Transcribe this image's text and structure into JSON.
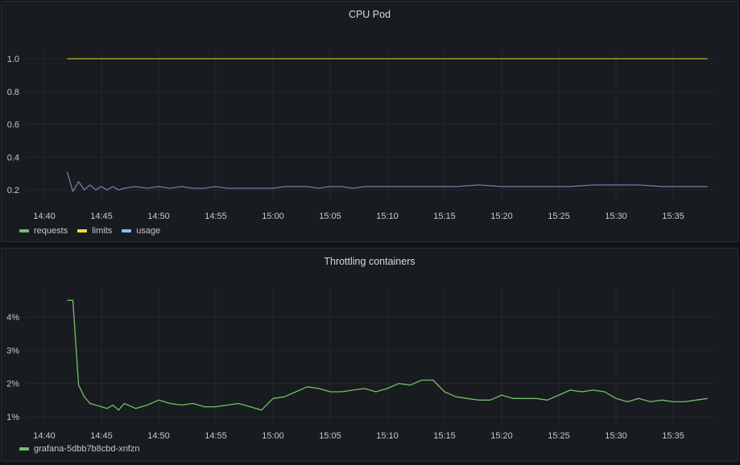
{
  "chart_data": [
    {
      "type": "line",
      "title": "CPU Pod",
      "x_ticks": [
        "14:40",
        "14:45",
        "14:50",
        "14:55",
        "15:00",
        "15:05",
        "15:10",
        "15:15",
        "15:20",
        "15:25",
        "15:30",
        "15:35"
      ],
      "y_ticks": [
        "0.2",
        "0.4",
        "0.6",
        "0.8",
        "1.0"
      ],
      "ylim": [
        0.2,
        1.0
      ],
      "grid": true,
      "legend_position": "bottom-left",
      "series": [
        {
          "name": "requests",
          "color": "#73bf69",
          "x": [],
          "y": []
        },
        {
          "name": "limits",
          "color": "#fade2a",
          "color_drawn": "#b7b22c",
          "x": [
            "14:42",
            "15:38"
          ],
          "y": [
            1.0,
            1.0
          ]
        },
        {
          "name": "usage",
          "color": "#8ab8ff",
          "color_drawn": "#6c7fa9",
          "x": [
            "14:42",
            "14:42:30",
            "14:43",
            "14:43:30",
            "14:44",
            "14:44:30",
            "14:45",
            "14:45:30",
            "14:46",
            "14:46:30",
            "14:47",
            "14:48",
            "14:49",
            "14:50",
            "14:51",
            "14:52",
            "14:53",
            "14:54",
            "14:55",
            "14:56",
            "14:58",
            "15:00",
            "15:01",
            "15:02",
            "15:03",
            "15:04",
            "15:05",
            "15:06",
            "15:07",
            "15:08",
            "15:09",
            "15:10",
            "15:12",
            "15:14",
            "15:16",
            "15:18",
            "15:20",
            "15:22",
            "15:24",
            "15:26",
            "15:28",
            "15:30",
            "15:32",
            "15:34",
            "15:36",
            "15:38"
          ],
          "y": [
            0.31,
            0.19,
            0.25,
            0.2,
            0.23,
            0.2,
            0.22,
            0.2,
            0.22,
            0.2,
            0.21,
            0.22,
            0.21,
            0.22,
            0.21,
            0.22,
            0.21,
            0.21,
            0.22,
            0.21,
            0.21,
            0.21,
            0.22,
            0.22,
            0.22,
            0.21,
            0.22,
            0.22,
            0.21,
            0.22,
            0.22,
            0.22,
            0.22,
            0.22,
            0.22,
            0.23,
            0.22,
            0.22,
            0.22,
            0.22,
            0.23,
            0.23,
            0.23,
            0.22,
            0.22,
            0.22
          ]
        }
      ]
    },
    {
      "type": "line",
      "title": "Throttling containers",
      "x_ticks": [
        "14:40",
        "14:45",
        "14:50",
        "14:55",
        "15:00",
        "15:05",
        "15:10",
        "15:15",
        "15:20",
        "15:25",
        "15:30",
        "15:35"
      ],
      "y_ticks": [
        "1%",
        "2%",
        "3%",
        "4%"
      ],
      "ylim": [
        1,
        4.5
      ],
      "grid": true,
      "legend_position": "bottom-left",
      "series": [
        {
          "name": "grafana-5dbb7b8cbd-xnfzn",
          "color": "#73bf69",
          "x": [
            "14:42",
            "14:42:30",
            "14:43",
            "14:43:30",
            "14:44",
            "14:44:30",
            "14:45",
            "14:45:30",
            "14:46",
            "14:46:30",
            "14:47",
            "14:48",
            "14:49",
            "14:50",
            "14:51",
            "14:52",
            "14:53",
            "14:54",
            "14:55",
            "14:56",
            "14:57",
            "14:58",
            "14:59",
            "15:00",
            "15:01",
            "15:02",
            "15:03",
            "15:04",
            "15:05",
            "15:06",
            "15:07",
            "15:08",
            "15:09",
            "15:10",
            "15:11",
            "15:12",
            "15:13",
            "15:14",
            "15:15",
            "15:16",
            "15:17",
            "15:18",
            "15:19",
            "15:20",
            "15:21",
            "15:22",
            "15:23",
            "15:24",
            "15:25",
            "15:26",
            "15:27",
            "15:28",
            "15:29",
            "15:30",
            "15:31",
            "15:32",
            "15:33",
            "15:34",
            "15:35",
            "15:36",
            "15:37",
            "15:38"
          ],
          "y": [
            4.5,
            4.5,
            1.95,
            1.6,
            1.4,
            1.35,
            1.3,
            1.25,
            1.35,
            1.2,
            1.4,
            1.25,
            1.35,
            1.5,
            1.4,
            1.35,
            1.4,
            1.3,
            1.3,
            1.35,
            1.4,
            1.3,
            1.2,
            1.55,
            1.6,
            1.75,
            1.9,
            1.85,
            1.75,
            1.75,
            1.8,
            1.85,
            1.75,
            1.85,
            2.0,
            1.95,
            2.1,
            2.1,
            1.75,
            1.6,
            1.55,
            1.5,
            1.5,
            1.65,
            1.55,
            1.55,
            1.55,
            1.5,
            1.65,
            1.8,
            1.75,
            1.8,
            1.75,
            1.55,
            1.45,
            1.55,
            1.45,
            1.5,
            1.45,
            1.45,
            1.5,
            1.55
          ]
        }
      ]
    }
  ]
}
